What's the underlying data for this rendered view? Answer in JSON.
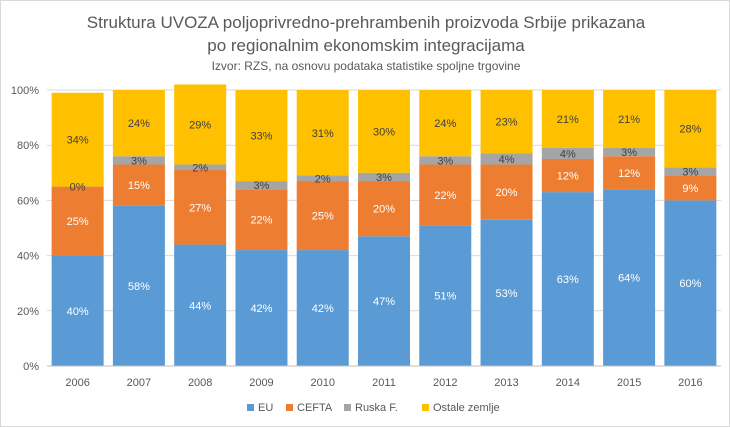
{
  "chart_data": {
    "type": "bar",
    "stacked": true,
    "title_lines": [
      "Struktura UVOZA poljoprivredno-prehrambenih proizvoda Srbije prikazana",
      "po regionalnim ekonomskim integracijama"
    ],
    "subtitle": "Izvor: RZS, na osnovu podataka statistike spoljne trgovine",
    "categories": [
      "2006",
      "2007",
      "2008",
      "2009",
      "2010",
      "2011",
      "2012",
      "2013",
      "2014",
      "2015",
      "2016"
    ],
    "series": [
      {
        "name": "EU",
        "color": "#5b9bd5",
        "label_color": "#ffffff",
        "values": [
          40,
          58,
          44,
          42,
          42,
          47,
          51,
          53,
          63,
          64,
          60
        ]
      },
      {
        "name": "CEFTA",
        "color": "#ed7d31",
        "label_color": "#ffffff",
        "values": [
          25,
          15,
          27,
          22,
          25,
          20,
          22,
          20,
          12,
          12,
          9
        ]
      },
      {
        "name": "Ruska F.",
        "color": "#a5a5a5",
        "label_color": "#404040",
        "values": [
          0,
          3,
          2,
          3,
          2,
          3,
          3,
          4,
          4,
          3,
          3
        ]
      },
      {
        "name": "Ostale zemlje",
        "color": "#ffc000",
        "label_color": "#404040",
        "values": [
          34,
          24,
          29,
          33,
          31,
          30,
          24,
          23,
          21,
          21,
          28
        ]
      }
    ],
    "data_labels": [
      [
        "40%",
        "58%",
        "44%",
        "42%",
        "42%",
        "47%",
        "51%",
        "53%",
        "63%",
        "64%",
        "60%"
      ],
      [
        "25%",
        "15%",
        "27%",
        "22%",
        "25%",
        "20%",
        "22%",
        "20%",
        "12%",
        "12%",
        "9%"
      ],
      [
        "0%",
        "3%",
        "2%",
        "3%",
        "2%",
        "3%",
        "3%",
        "4%",
        "4%",
        "3%",
        "3%"
      ],
      [
        "34%",
        "24%",
        "29%",
        "33%",
        "31%",
        "30%",
        "24%",
        "23%",
        "21%",
        "21%",
        "28%"
      ]
    ],
    "y_ticks": [
      "0%",
      "20%",
      "40%",
      "60%",
      "80%",
      "100%"
    ],
    "ylim": [
      0,
      100
    ],
    "grid": true,
    "legend_position": "bottom"
  }
}
